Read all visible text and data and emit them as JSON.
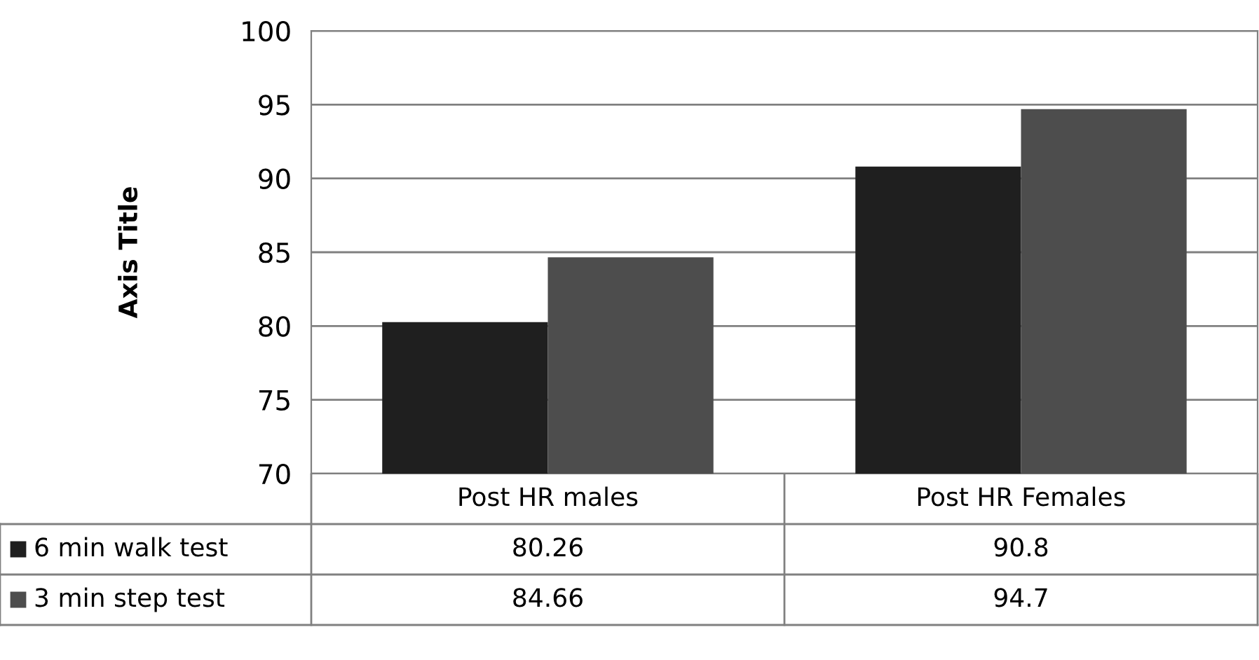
{
  "chart_data": {
    "type": "bar",
    "ylabel": "Axis Title",
    "categories": [
      "Post HR males",
      "Post HR Females"
    ],
    "series": [
      {
        "name": "6 min walk test",
        "color": "#1f1f1f",
        "values": [
          80.26,
          90.8
        ]
      },
      {
        "name": "3 min step test",
        "color": "#4d4d4d",
        "values": [
          84.66,
          94.7
        ]
      }
    ],
    "ylim": [
      70,
      100
    ],
    "yticks": [
      70,
      75,
      80,
      85,
      90,
      95,
      100
    ],
    "grid": "y",
    "legend": "bottom",
    "data_labels": true
  }
}
